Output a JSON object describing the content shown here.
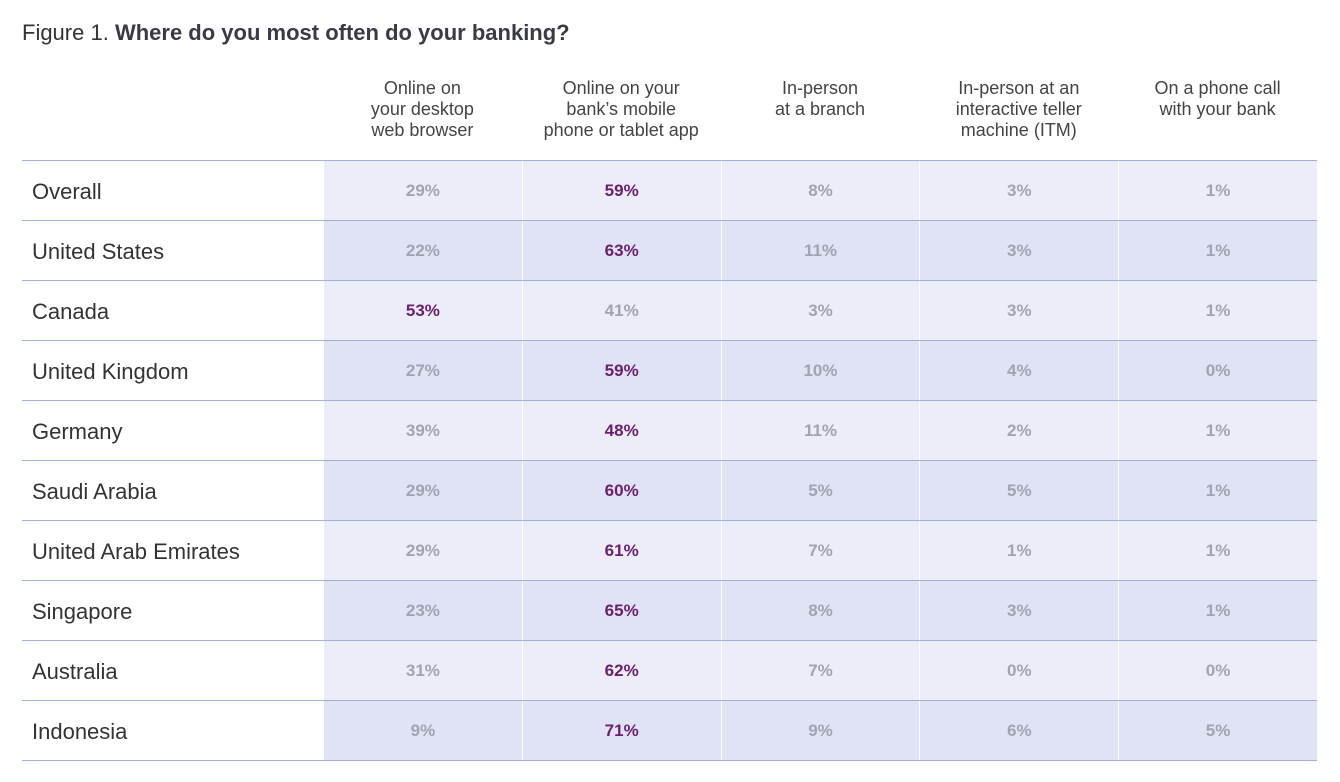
{
  "title": {
    "label": "Figure 1.",
    "text": "Where do you most often do your banking?"
  },
  "table": {
    "columns": [
      [
        "Online on",
        "your desktop",
        "web browser"
      ],
      [
        "Online on your",
        "bank’s mobile",
        "phone or tablet app"
      ],
      [
        "In-person",
        "at a branch"
      ],
      [
        "In-person at an",
        "interactive teller",
        "machine (ITM)"
      ],
      [
        "On a phone call",
        "with your bank"
      ]
    ],
    "rows": [
      [
        "Overall",
        "29%",
        "59%",
        "8%",
        "3%",
        "1%"
      ],
      [
        "United States",
        "22%",
        "63%",
        "11%",
        "3%",
        "1%"
      ],
      [
        "Canada",
        "53%",
        "41%",
        "3%",
        "3%",
        "1%"
      ],
      [
        "United Kingdom",
        "27%",
        "59%",
        "10%",
        "4%",
        "0%"
      ],
      [
        "Germany",
        "39%",
        "48%",
        "11%",
        "2%",
        "1%"
      ],
      [
        "Saudi Arabia",
        "29%",
        "60%",
        "5%",
        "5%",
        "1%"
      ],
      [
        "United Arab Emirates",
        "29%",
        "61%",
        "7%",
        "1%",
        "1%"
      ],
      [
        "Singapore",
        "23%",
        "65%",
        "8%",
        "3%",
        "1%"
      ],
      [
        "Australia",
        "31%",
        "62%",
        "7%",
        "0%",
        "0%"
      ],
      [
        "Indonesia",
        "9%",
        "71%",
        "9%",
        "6%",
        "5%"
      ]
    ]
  }
}
